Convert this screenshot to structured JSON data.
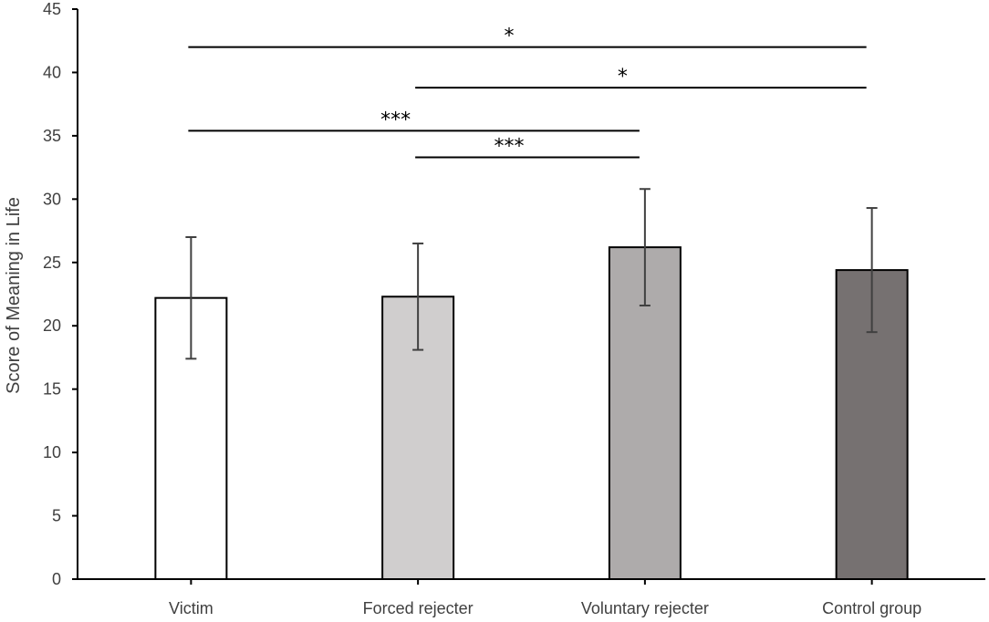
{
  "chart_data": {
    "type": "bar",
    "title": "",
    "xlabel": "",
    "ylabel": "Score of Meaning in Life",
    "ylim": [
      0,
      45
    ],
    "yticks": [
      0,
      5,
      10,
      15,
      20,
      25,
      30,
      35,
      40,
      45
    ],
    "grid": false,
    "categories": [
      "Victim",
      "Forced rejecter",
      "Voluntary rejecter",
      "Control group"
    ],
    "values": [
      22.2,
      22.3,
      26.2,
      24.4
    ],
    "error": [
      4.8,
      4.2,
      4.6,
      4.9
    ],
    "bar_colors": [
      "#ffffff",
      "#d0cece",
      "#aeabab",
      "#767171"
    ],
    "significance": [
      {
        "from": 0,
        "to": 3,
        "y": 42.0,
        "label": "*"
      },
      {
        "from": 1,
        "to": 3,
        "y": 38.8,
        "label": "*"
      },
      {
        "from": 0,
        "to": 2,
        "y": 35.4,
        "label": "***"
      },
      {
        "from": 1,
        "to": 2,
        "y": 33.3,
        "label": "***"
      }
    ]
  }
}
